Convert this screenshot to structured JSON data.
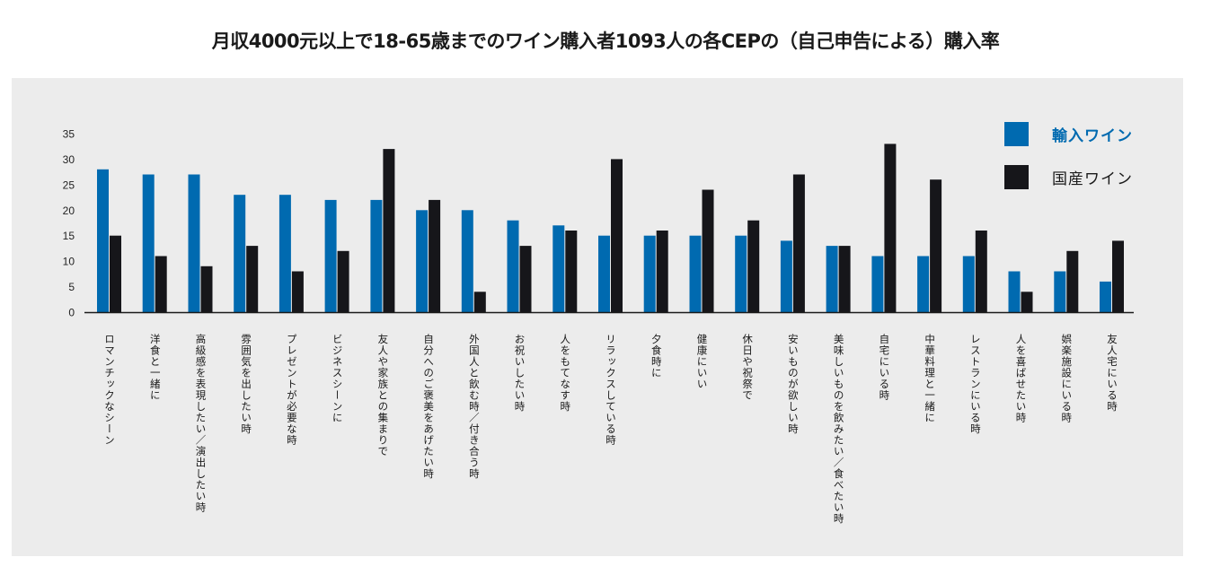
{
  "chart_data": {
    "type": "bar",
    "title": "月収4000元以上で18-65歳までのワイン購入者1093人の各CEPの（自己申告による）購入率",
    "xlabel": "",
    "ylabel": "",
    "ylim": [
      0,
      35
    ],
    "yticks": [
      0,
      5,
      10,
      15,
      20,
      25,
      30,
      35
    ],
    "ytick_labels": [
      "0",
      "5",
      "10",
      "15",
      "20",
      "25",
      "30",
      "35"
    ],
    "grid": false,
    "legend_position": "top-right",
    "categories": [
      "ロマンチックなシーン",
      "洋食と一緒に",
      "高級感を表現したい／演出したい時",
      "雰囲気を出したい時",
      "プレゼントが必要な時",
      "ビジネスシーンに",
      "友人や家族との集まりで",
      "自分へのご褒美をあげたい時",
      "外国人と飲む時／付き合う時",
      "お祝いしたい時",
      "人をもてなす時",
      "リラックスしている時",
      "夕食時に",
      "健康にいい",
      "休日や祝祭で",
      "安いものが欲しい時",
      "美味しいものを飲みたい／食べたい時",
      "自宅にいる時",
      "中華料理と一緒に",
      "レストランにいる時",
      "人を喜ばせたい時",
      "娯楽施設にいる時",
      "友人宅にいる時"
    ],
    "series": [
      {
        "name": "輸入ワイン",
        "color": "#006ab0",
        "values": [
          28,
          27,
          27,
          23,
          23,
          22,
          22,
          20,
          20,
          18,
          17,
          15,
          15,
          15,
          15,
          14,
          13,
          11,
          11,
          11,
          8,
          8,
          6
        ]
      },
      {
        "name": "国産ワイン",
        "color": "#16161a",
        "values": [
          15,
          11,
          9,
          13,
          8,
          12,
          32,
          22,
          4,
          13,
          16,
          30,
          16,
          24,
          18,
          27,
          13,
          33,
          26,
          16,
          4,
          12,
          14
        ]
      }
    ]
  },
  "colors": {
    "panel_background": "#ececec",
    "axis": "#1a1a1a",
    "legend_imported_text": "#006ab0",
    "legend_domestic_text": "#1a1a1a"
  }
}
